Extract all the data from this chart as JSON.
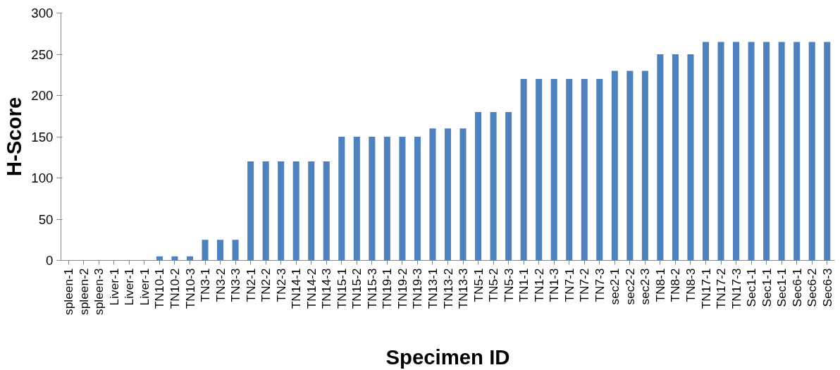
{
  "chart_data": {
    "type": "bar",
    "xlabel": "Specimen ID",
    "ylabel": "H-Score",
    "categories": [
      "spleen-1",
      "spleen-2",
      "spleen-3",
      "Liver-1",
      "Liver-1",
      "Liver-1",
      "TN10-1",
      "TN10-2",
      "TN10-3",
      "TN3-1",
      "TN3-2",
      "TN3-3",
      "TN2-1",
      "TN2-2",
      "TN2-3",
      "TN14-1",
      "TN14-2",
      "TN14-3",
      "TN15-1",
      "TN15-2",
      "TN15-3",
      "TN19-1",
      "TN19-2",
      "TN19-3",
      "TN13-1",
      "TN13-2",
      "TN13-3",
      "TN5-1",
      "TN5-2",
      "TN5-3",
      "TN1-1",
      "TN1-2",
      "TN1-3",
      "TN7-1",
      "TN7-2",
      "TN7-3",
      "sec2-1",
      "sec2-2",
      "sec2-3",
      "TN8-1",
      "TN8-2",
      "TN8-3",
      "TN17-1",
      "TN17-2",
      "TN17-3",
      "Sec1-1",
      "Sec1-1",
      "Sec1-1",
      "Sec6-1",
      "Sec6-2",
      "Sec6-3"
    ],
    "values": [
      0,
      0,
      0,
      0,
      0,
      0,
      5,
      5,
      5,
      25,
      25,
      25,
      120,
      120,
      120,
      120,
      120,
      120,
      150,
      150,
      150,
      150,
      150,
      150,
      160,
      160,
      160,
      180,
      180,
      180,
      220,
      220,
      220,
      220,
      220,
      220,
      230,
      230,
      230,
      250,
      250,
      250,
      265,
      265,
      265,
      265,
      265,
      265,
      265,
      265,
      265
    ],
    "color": "#4f81bd",
    "ylim": [
      0,
      300
    ],
    "yticks": [
      0,
      50,
      100,
      150,
      200,
      250,
      300
    ],
    "grid": false
  }
}
